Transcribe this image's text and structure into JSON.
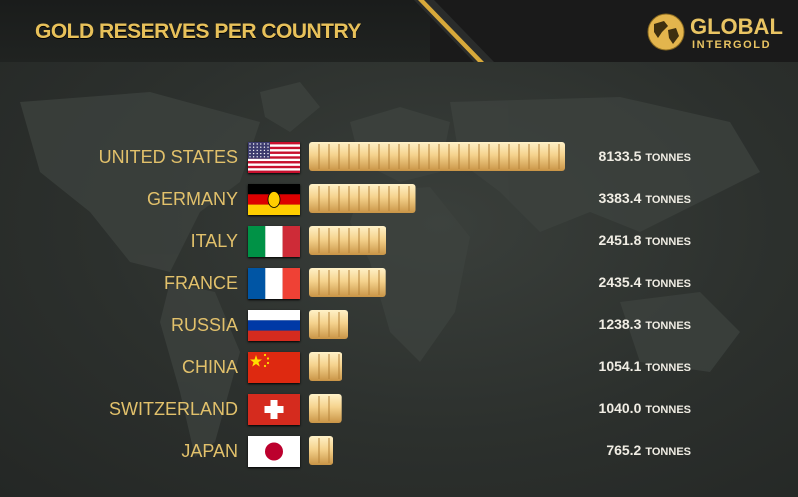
{
  "header": {
    "title": "GOLD RESERVES PER COUNTRY"
  },
  "logo": {
    "line1": "GLOBAL",
    "line2": "INTERGOLD"
  },
  "colors": {
    "gold": "#e8c15a",
    "bar_light": "#fbe3a6",
    "bar_dark": "#c9974a",
    "background": "#2b2f2c"
  },
  "chart_data": {
    "type": "bar",
    "orientation": "horizontal",
    "title": "GOLD RESERVES PER COUNTRY",
    "unit": "TONNES",
    "categories": [
      "UNITED STATES",
      "GERMANY",
      "ITALY",
      "FRANCE",
      "RUSSIA",
      "CHINA",
      "SWITZERLAND",
      "JAPAN"
    ],
    "values": [
      8133.5,
      3383.4,
      2451.8,
      2435.4,
      1238.3,
      1054.1,
      1040.0,
      765.2
    ],
    "value_labels": [
      "8133.5",
      "3383.4",
      "2451.8",
      "2435.4",
      "1238.3",
      "1054.1",
      "1040.0",
      "765.2"
    ],
    "flags": [
      "us-flag",
      "germany-flag",
      "italy-flag",
      "france-flag",
      "russia-flag",
      "china-flag",
      "switzerland-flag",
      "japan-flag"
    ],
    "xlim": [
      0,
      8133.5
    ],
    "grid": false,
    "legend": "none"
  }
}
